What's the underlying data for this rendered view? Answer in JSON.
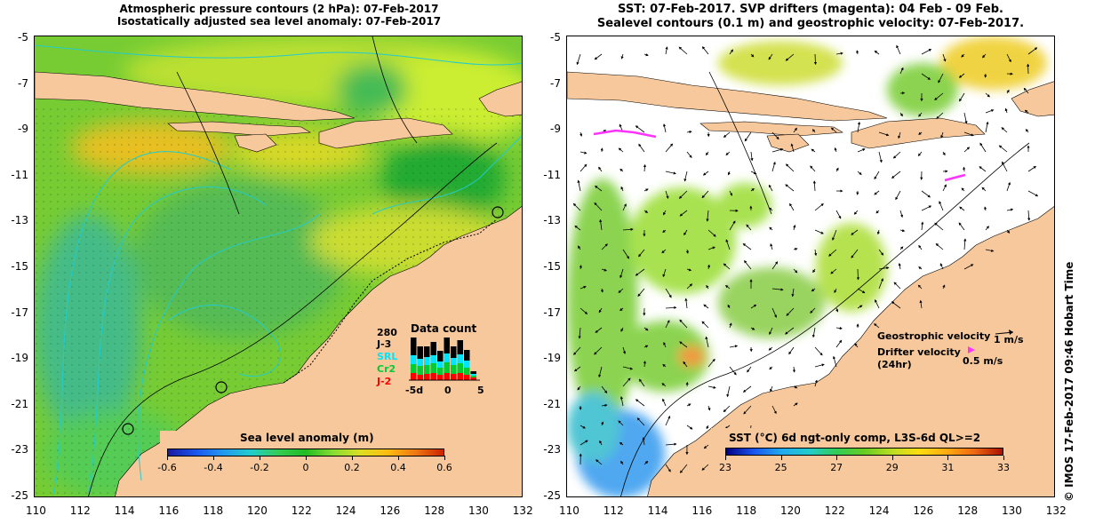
{
  "left_panel": {
    "title_line1": "Atmospheric pressure contours (2 hPa): 07-Feb-2017",
    "title_line2": "Isostatically adjusted sea level anomaly: 07-Feb-2017",
    "colorbar": {
      "title": "Sea level anomaly (m)",
      "ticks": [
        "-0.6",
        "-0.4",
        "-0.2",
        "0",
        "0.2",
        "0.4",
        "0.6"
      ]
    },
    "data_count": {
      "title": "Data count",
      "max": "280",
      "satellites": [
        {
          "name": "J-3",
          "color": "#000000"
        },
        {
          "name": "SRL",
          "color": "#00e5ff"
        },
        {
          "name": "Cr2",
          "color": "#00cc33"
        },
        {
          "name": "J-2",
          "color": "#ff0000"
        }
      ],
      "axis": [
        "-5d",
        "0",
        "5"
      ]
    }
  },
  "right_panel": {
    "title_line1": "SST: 07-Feb-2017. SVP drifters (magenta): 04 Feb - 09 Feb.",
    "title_line2": "Sealevel contours (0.1 m) and geostrophic velocity: 07-Feb-2017.",
    "legend": {
      "geo_label": "Geostrophic velocity",
      "geo_scale": "1 m/s",
      "drifter_label": "Drifter velocity",
      "drifter_sub": "(24hr)",
      "drifter_scale": "0.5 m/s"
    },
    "colorbar": {
      "title": "SST (°C) 6d ngt-only comp, L3S-6d QL>=2",
      "ticks": [
        "23",
        "25",
        "27",
        "29",
        "31",
        "33"
      ]
    },
    "credit": "© IMOS 17-Feb-2017 09:46 Hobart Time"
  },
  "axes": {
    "lat_ticks": [
      "-5",
      "-7",
      "-9",
      "-11",
      "-13",
      "-15",
      "-17",
      "-19",
      "-21",
      "-23",
      "-25"
    ],
    "lon_ticks": [
      "110",
      "112",
      "114",
      "116",
      "118",
      "120",
      "122",
      "124",
      "126",
      "128",
      "130",
      "132"
    ]
  },
  "colors": {
    "land": "#f7c89b",
    "ocean_green": "#55cc33",
    "ocean_yellow": "#ccee33",
    "ocean_cyan": "#33ccaa",
    "sst_blue": "#3399ee",
    "drifter_magenta": "#ff33ff"
  }
}
